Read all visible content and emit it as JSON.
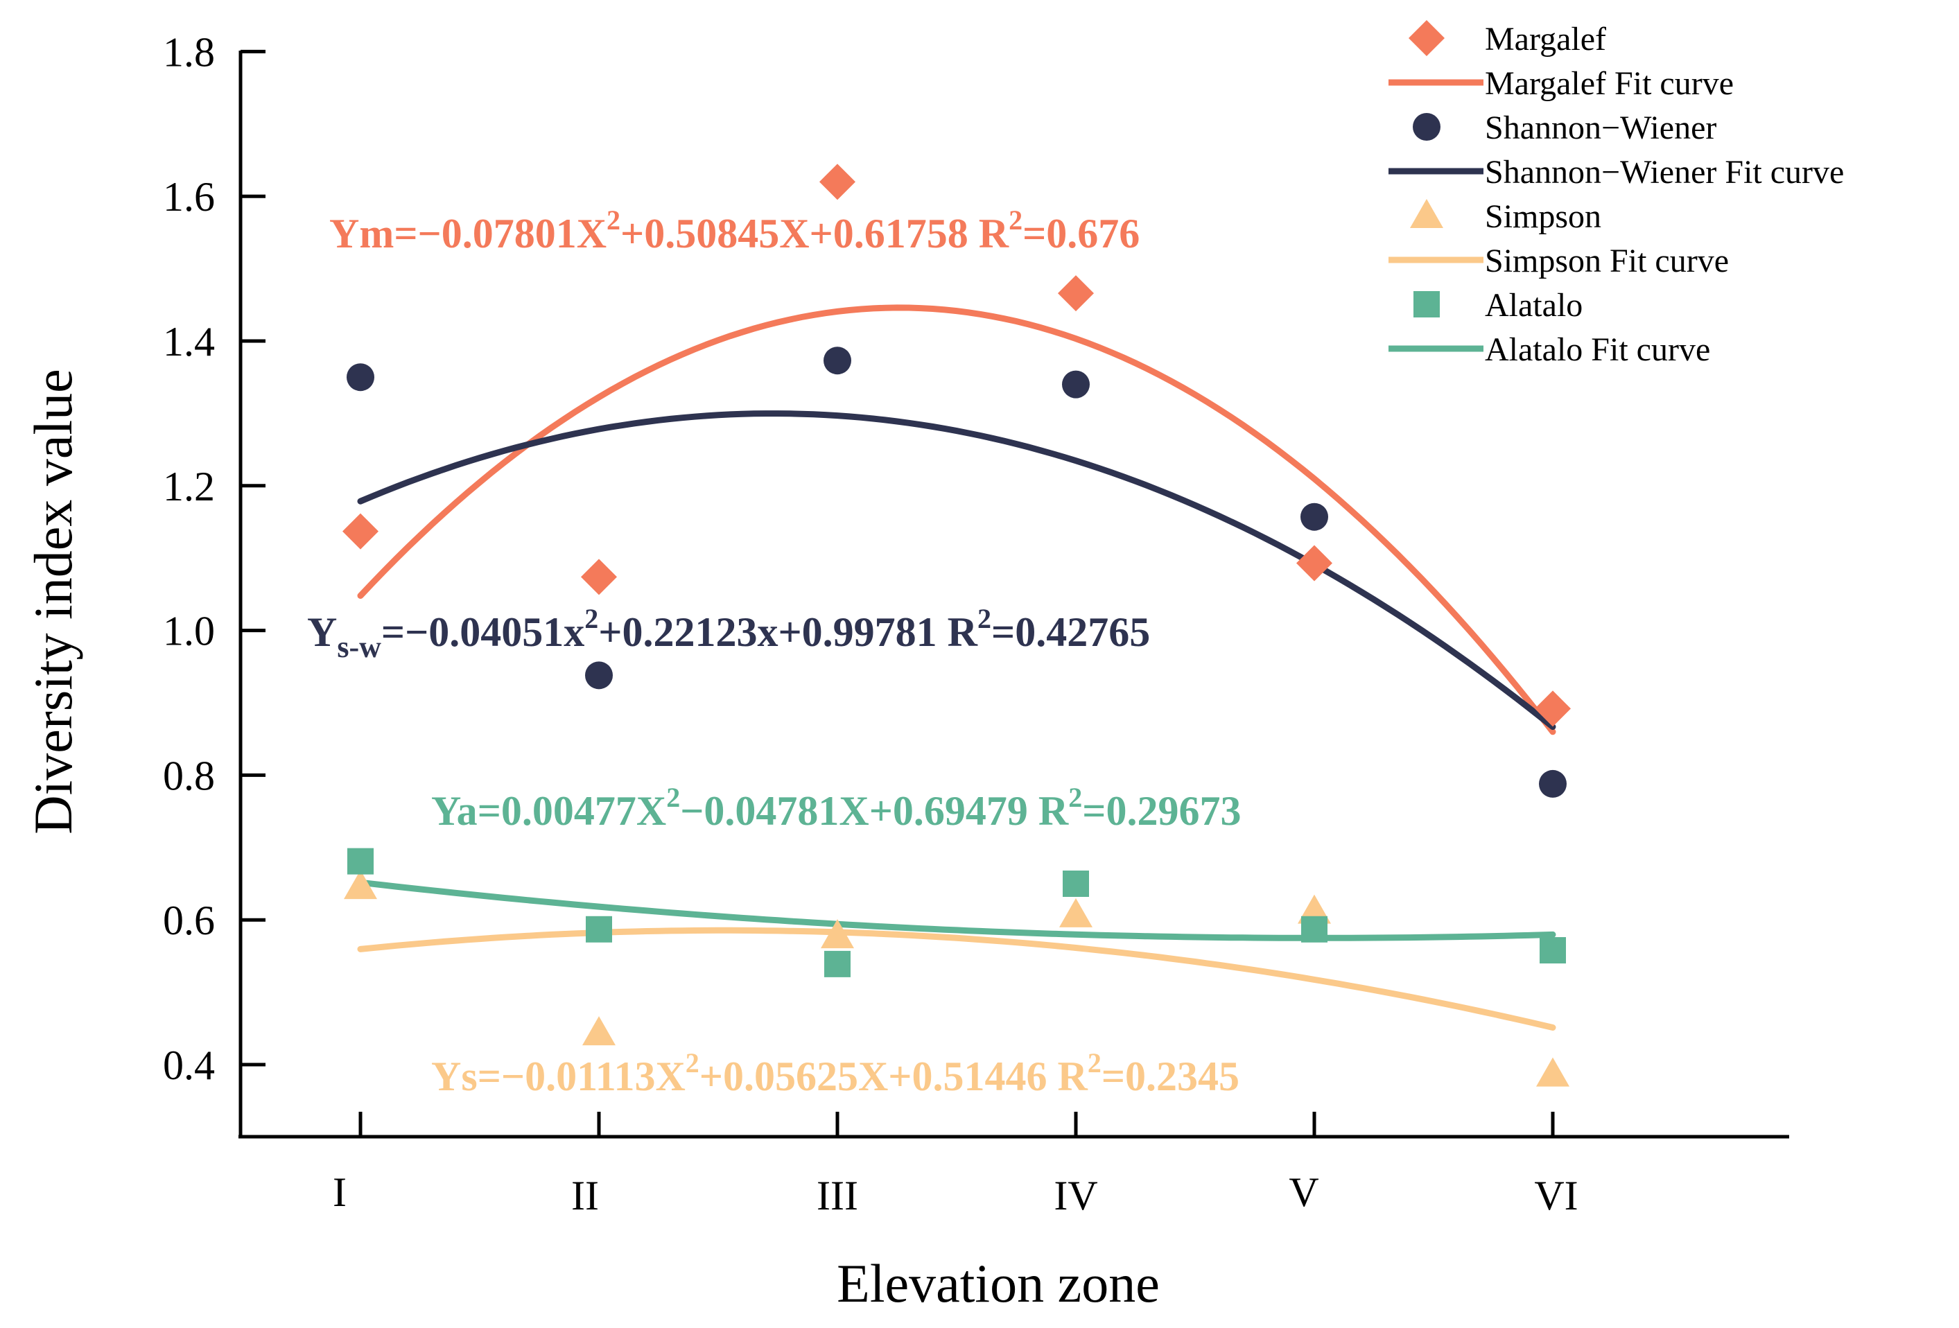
{
  "chart_data": {
    "type": "scatter",
    "xlabel": "Elevation zone",
    "ylabel": "Diversity index value",
    "categories": [
      "I",
      "II",
      "III",
      "IV",
      "V",
      "VI"
    ],
    "ylim": [
      0.3,
      1.8
    ],
    "yticks": [
      "0.4",
      "0.6",
      "0.8",
      "1.0",
      "1.2",
      "1.4",
      "1.6",
      "1.8"
    ],
    "grid": false,
    "legend_position": "top-right",
    "series": [
      {
        "name": "Margalef",
        "fit_name": "Margalef Fit curve",
        "marker": "diamond",
        "color": "#F47A5A",
        "values": [
          1.137,
          1.074,
          1.62,
          1.466,
          1.093,
          0.892
        ],
        "fit_coefficients": [
          -0.07801,
          0.50845,
          0.61758
        ]
      },
      {
        "name": "Shannon−Wiener",
        "fit_name": "Shannon−Wiener Fit curve",
        "marker": "circle",
        "color": "#2E3350",
        "values": [
          1.35,
          0.938,
          1.373,
          1.34,
          1.157,
          0.788
        ],
        "fit_coefficients": [
          -0.04051,
          0.22123,
          0.99781
        ]
      },
      {
        "name": "Simpson",
        "fit_name": "Simpson Fit curve",
        "marker": "triangle",
        "color": "#FBC98A",
        "values": [
          0.646,
          0.444,
          0.578,
          0.607,
          0.612,
          0.387
        ],
        "fit_coefficients": [
          -0.01113,
          0.05625,
          0.51446
        ]
      },
      {
        "name": "Alatalo",
        "fit_name": "Alatalo Fit curve",
        "marker": "square",
        "color": "#5DB394",
        "values": [
          0.681,
          0.587,
          0.539,
          0.65,
          0.587,
          0.558
        ],
        "fit_coefficients": [
          0.00477,
          -0.04781,
          0.69479
        ]
      }
    ],
    "annotations": [
      {
        "id": "margalef",
        "color": "#F47A5A",
        "prefix": "Ym",
        "sub": "",
        "mid": "=−0.07801X",
        "sup1": "2",
        "tail": "+0.50845X+0.61758   R",
        "sup2": "2",
        "end": "=0.676"
      },
      {
        "id": "shannon",
        "color": "#2E3350",
        "prefix": "Y",
        "sub": "s-w",
        "mid": "=−0.04051x",
        "sup1": "2",
        "tail": "+0.22123x+0.99781   R",
        "sup2": "2",
        "end": "=0.42765"
      },
      {
        "id": "alatalo",
        "color": "#5DB394",
        "prefix": "Ya",
        "sub": "",
        "mid": "=0.00477X",
        "sup1": "2",
        "tail": "−0.04781X+0.69479   R",
        "sup2": "2",
        "end": "=0.29673"
      },
      {
        "id": "simpson",
        "color": "#FBC98A",
        "prefix": "Ys",
        "sub": "",
        "mid": "=−0.01113X",
        "sup1": "2",
        "tail": "+0.05625X+0.51446  R",
        "sup2": "2",
        "end": "=0.2345"
      }
    ]
  }
}
